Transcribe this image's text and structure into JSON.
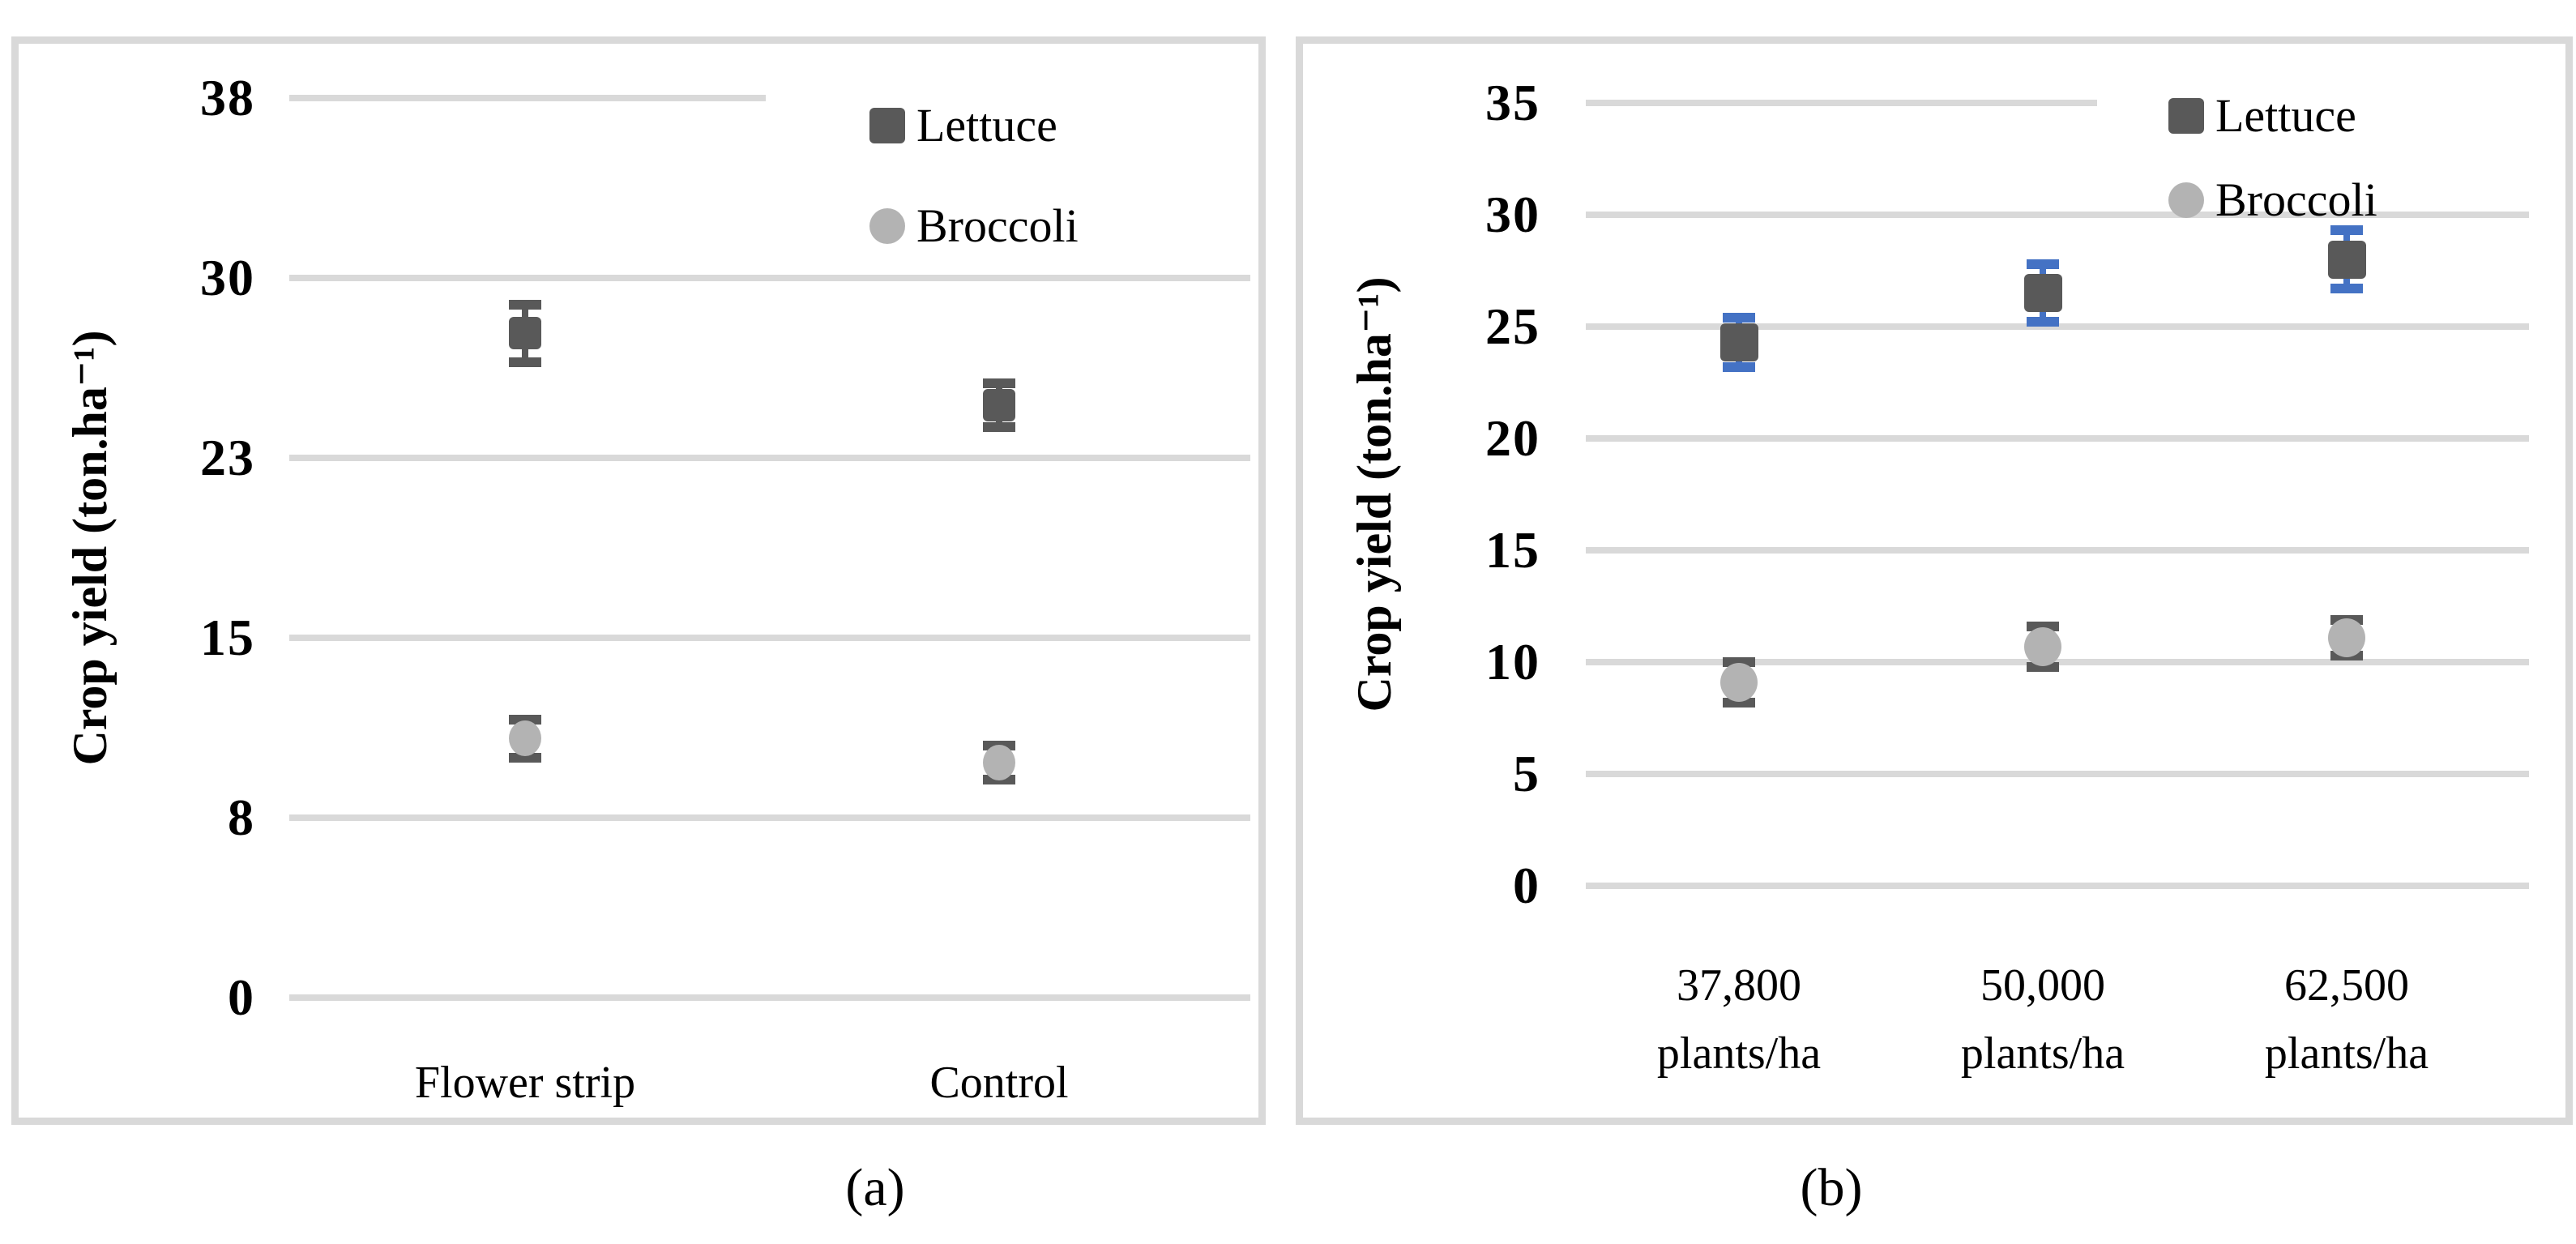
{
  "figure": {
    "caption_a": "(a)",
    "caption_b": "(b)"
  },
  "colors": {
    "lettuce": "#595959",
    "broccoli": "#b3b3b3",
    "gridline": "#d9d9d9",
    "panel_border": "#d9d9d9",
    "error_dark": "#595959",
    "error_blue": "#4472c4",
    "text": "#000000"
  },
  "chart_data": [
    {
      "id": "a",
      "type": "scatter",
      "caption": "(a)",
      "ylabel": "Crop yield (ton.ha⁻¹)",
      "ylim": [
        0,
        37.5
      ],
      "y_tick_values": [
        0,
        7.5,
        15,
        22.5,
        30,
        37.5
      ],
      "y_tick_labels": [
        "0",
        "8",
        "15",
        "23",
        "30",
        "38"
      ],
      "categories": [
        "Flower strip",
        "Control"
      ],
      "grid": true,
      "legend_position": "top-right",
      "legend_entries": [
        "Lettuce",
        "Broccoli"
      ],
      "series": [
        {
          "name": "Lettuce",
          "marker": "square",
          "color": "#595959",
          "error_color": "#595959",
          "values": [
            27.7,
            24.7
          ],
          "errors": [
            1.2,
            0.9
          ]
        },
        {
          "name": "Broccoli",
          "marker": "circle",
          "color": "#b3b3b3",
          "error_color": "#595959",
          "values": [
            10.8,
            9.8
          ],
          "errors": [
            0.8,
            0.7
          ]
        }
      ]
    },
    {
      "id": "b",
      "type": "scatter",
      "caption": "(b)",
      "ylabel": "Crop yield (ton.ha⁻¹)",
      "ylim": [
        0,
        35
      ],
      "y_tick_values": [
        0,
        5,
        10,
        15,
        20,
        25,
        30,
        35
      ],
      "y_tick_labels": [
        "0",
        "5",
        "10",
        "15",
        "20",
        "25",
        "30",
        "35"
      ],
      "categories": [
        "37,800\nplants/ha",
        "50,000\nplants/ha",
        "62,500\nplants/ha"
      ],
      "grid": true,
      "legend_position": "top-right",
      "legend_entries": [
        "Lettuce",
        "Broccoli"
      ],
      "series": [
        {
          "name": "Lettuce",
          "marker": "square",
          "color": "#595959",
          "error_color": "#4472c4",
          "values": [
            24.3,
            26.5,
            28.0
          ],
          "errors": [
            1.1,
            1.3,
            1.3
          ]
        },
        {
          "name": "Broccoli",
          "marker": "circle",
          "color": "#b3b3b3",
          "error_color": "#595959",
          "values": [
            9.1,
            10.7,
            11.1
          ],
          "errors": [
            0.9,
            0.9,
            0.8
          ]
        }
      ]
    }
  ]
}
